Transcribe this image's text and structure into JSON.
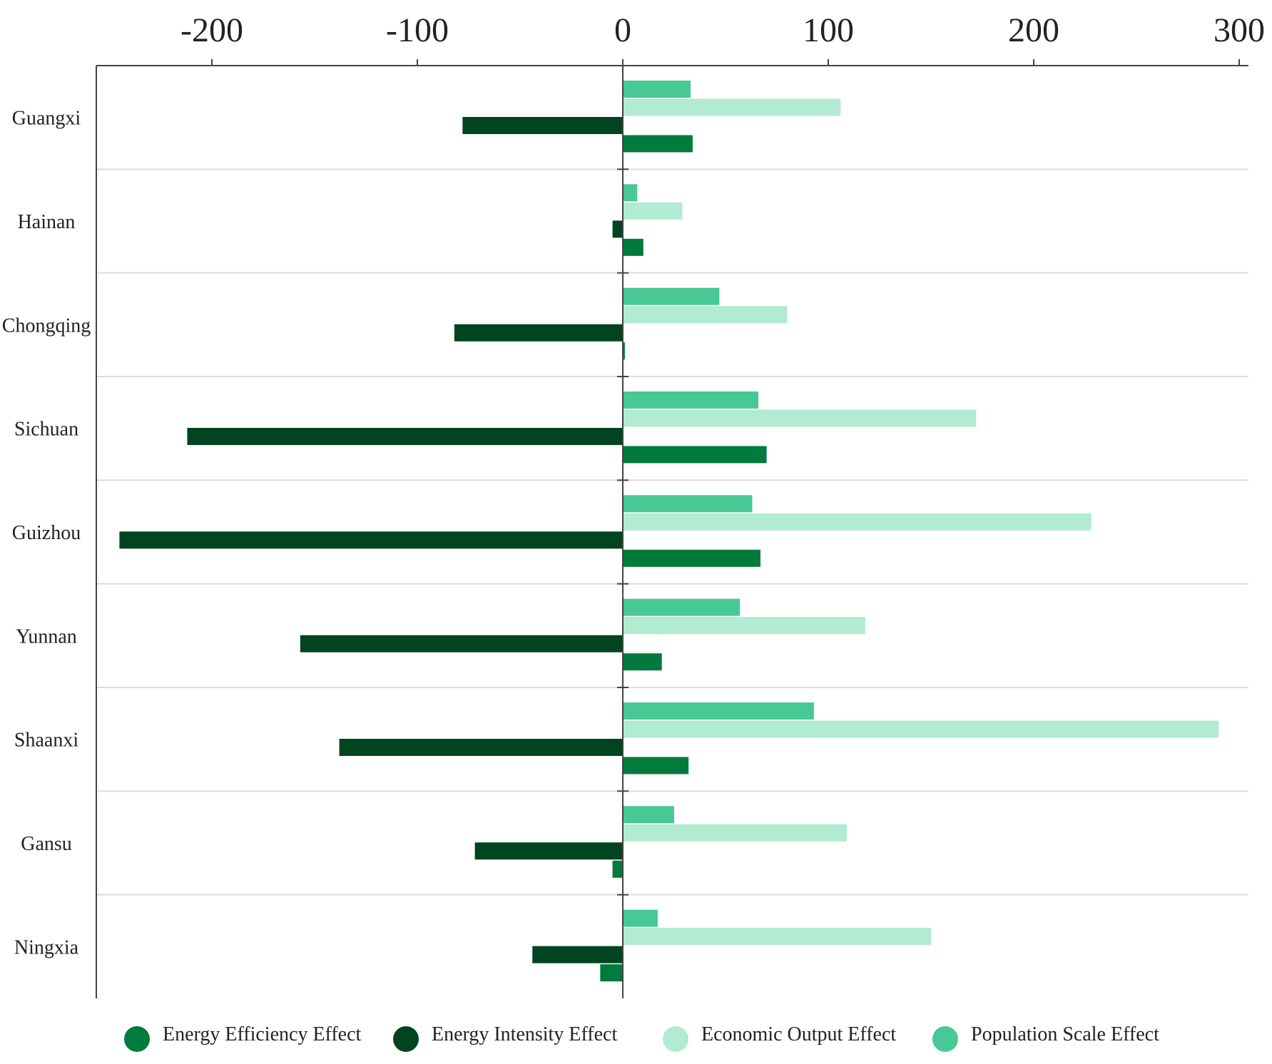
{
  "chart_data": {
    "type": "bar",
    "orientation": "horizontal",
    "categories": [
      "Guangxi",
      "Hainan",
      "Chongqing",
      "Sichuan",
      "Guizhou",
      "Yunnan",
      "Shaanxi",
      "Gansu",
      "Ningxia"
    ],
    "series": [
      {
        "name": "Population Scale Effect",
        "color": "#47c895",
        "values": [
          33,
          7,
          47,
          66,
          63,
          57,
          93,
          25,
          17
        ]
      },
      {
        "name": "Economic Output Effect",
        "color": "#b1ebd1",
        "values": [
          106,
          29,
          80,
          172,
          228,
          118,
          290,
          109,
          150
        ]
      },
      {
        "name": "Energy Intensity Effect",
        "color": "#004420",
        "values": [
          -78,
          -5,
          -82,
          -212,
          -245,
          -157,
          -138,
          -72,
          -44
        ]
      },
      {
        "name": "Energy Efficiency Effect",
        "color": "#007a3d",
        "values": [
          34,
          10,
          1,
          70,
          67,
          19,
          32,
          -5,
          -11
        ]
      }
    ],
    "legend": [
      {
        "name": "Energy Efficiency Effect",
        "color": "#007a3d"
      },
      {
        "name": "Energy Intensity Effect",
        "color": "#004420"
      },
      {
        "name": "Economic Output Effect",
        "color": "#b1ebd1"
      },
      {
        "name": "Population Scale Effect",
        "color": "#47c895"
      }
    ],
    "xticks": [
      "-200",
      "-100",
      "0",
      "100",
      "200",
      "300"
    ],
    "xtick_values": [
      -200,
      -100,
      0,
      100,
      200,
      300
    ],
    "xlim": [
      -258,
      305
    ],
    "grid": "horizontal separators between categories",
    "legend_position": "bottom",
    "title": "",
    "xlabel": "",
    "ylabel": ""
  }
}
